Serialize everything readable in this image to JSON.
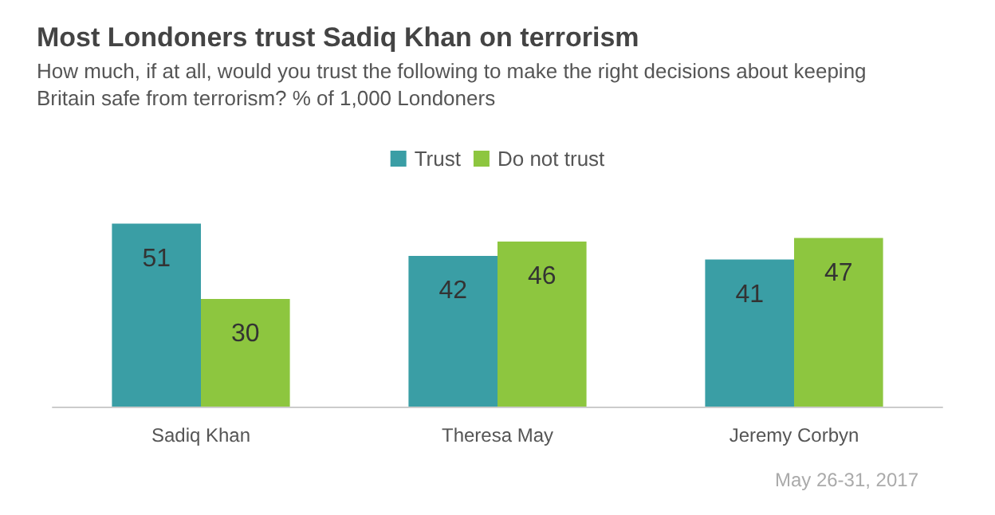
{
  "chart_data": {
    "type": "bar",
    "title": "Most Londoners trust Sadiq Khan on terrorism",
    "subtitle": "How much, if at all, would you trust the following to make the right decisions about keeping Britain safe from terrorism? % of 1,000 Londoners",
    "categories": [
      "Sadiq Khan",
      "Theresa May",
      "Jeremy Corbyn"
    ],
    "series": [
      {
        "name": "Trust",
        "color": "#3a9ea5",
        "values": [
          51,
          42,
          41
        ]
      },
      {
        "name": "Do not trust",
        "color": "#8dc63f",
        "values": [
          30,
          46,
          47
        ]
      }
    ],
    "data_labels": true,
    "legend": "top",
    "annotations": [
      "May 26-31, 2017"
    ]
  }
}
